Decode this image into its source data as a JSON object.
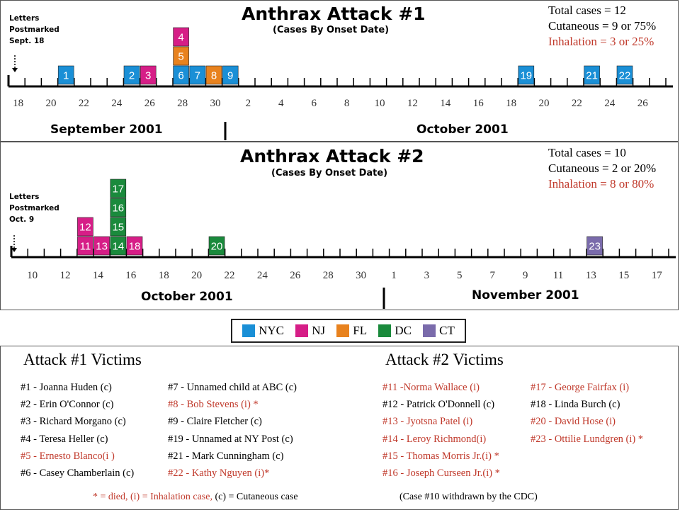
{
  "chart_data": [
    {
      "type": "bar",
      "title": "Anthrax Attack #1",
      "subtitle": "(Cases By Onset Date)",
      "summary": [
        "Total cases = 12",
        "Cutaneous = 9 or 75%",
        "Inhalation = 3 or 25%"
      ],
      "note": "Letters\nPostmarked\nSept. 18",
      "tick_labels": [
        "18",
        "20",
        "22",
        "24",
        "26",
        "28",
        "30",
        "2",
        "4",
        "6",
        "8",
        "10",
        "12",
        "14",
        "16",
        "18",
        "20",
        "22",
        "24",
        "26"
      ],
      "months": [
        "September 2001",
        "October 2001"
      ],
      "x_unit_days_from_sep18": true,
      "cases": [
        {
          "label": "1",
          "day": 3.5,
          "level": 0,
          "state": "NYC"
        },
        {
          "label": "2",
          "day": 7.5,
          "level": 0,
          "state": "NYC"
        },
        {
          "label": "3",
          "day": 8.5,
          "level": 0,
          "state": "NJ"
        },
        {
          "label": "6",
          "day": 10.5,
          "level": 0,
          "state": "NYC"
        },
        {
          "label": "5",
          "day": 10.5,
          "level": 1,
          "state": "FL"
        },
        {
          "label": "4",
          "day": 10.5,
          "level": 2,
          "state": "NJ"
        },
        {
          "label": "7",
          "day": 11.5,
          "level": 0,
          "state": "NYC"
        },
        {
          "label": "8",
          "day": 12.5,
          "level": 0,
          "state": "FL"
        },
        {
          "label": "9",
          "day": 13.5,
          "level": 0,
          "state": "NYC"
        },
        {
          "label": "19",
          "day": 31.5,
          "level": 0,
          "state": "NYC"
        },
        {
          "label": "21",
          "day": 35.5,
          "level": 0,
          "state": "NYC"
        },
        {
          "label": "22",
          "day": 37.5,
          "level": 0,
          "state": "NYC"
        }
      ]
    },
    {
      "type": "bar",
      "title": "Anthrax Attack #2",
      "subtitle": "(Cases By Onset Date)",
      "summary": [
        "Total cases = 10",
        "Cutaneous = 2 or 20%",
        "Inhalation = 8 or 80%"
      ],
      "note": "Letters\nPostmarked\nOct. 9",
      "tick_labels": [
        "10",
        "12",
        "14",
        "16",
        "18",
        "20",
        "22",
        "24",
        "26",
        "28",
        "30",
        "1",
        "3",
        "5",
        "7",
        "9",
        "11",
        "13",
        "15",
        "17"
      ],
      "months": [
        "October 2001",
        "November 2001"
      ],
      "cases": [
        {
          "label": "11",
          "day": 4.5,
          "level": 0,
          "state": "NJ"
        },
        {
          "label": "12",
          "day": 4.5,
          "level": 1,
          "state": "NJ"
        },
        {
          "label": "13",
          "day": 5.5,
          "level": 0,
          "state": "NJ"
        },
        {
          "label": "14",
          "day": 6.5,
          "level": 0,
          "state": "DC"
        },
        {
          "label": "15",
          "day": 6.5,
          "level": 1,
          "state": "DC"
        },
        {
          "label": "16",
          "day": 6.5,
          "level": 2,
          "state": "DC"
        },
        {
          "label": "17",
          "day": 6.5,
          "level": 3,
          "state": "DC"
        },
        {
          "label": "18",
          "day": 7.5,
          "level": 0,
          "state": "NJ"
        },
        {
          "label": "20",
          "day": 12.5,
          "level": 0,
          "state": "DC"
        },
        {
          "label": "23",
          "day": 35.5,
          "level": 0,
          "state": "CT"
        }
      ]
    }
  ],
  "legend": [
    {
      "label": "NYC",
      "color": "#1a8fd6"
    },
    {
      "label": "NJ",
      "color": "#d61e87"
    },
    {
      "label": "FL",
      "color": "#e8821e"
    },
    {
      "label": "DC",
      "color": "#1a8a3c"
    },
    {
      "label": "CT",
      "color": "#7a6bab"
    }
  ],
  "colors": {
    "NYC": "#1a8fd6",
    "NJ": "#d61e87",
    "FL": "#e8821e",
    "DC": "#1a8a3c",
    "CT": "#7a6bab",
    "red_text": "#c0392b"
  },
  "victims": {
    "attack1_heading": "Attack #1 Victims",
    "attack2_heading": "Attack #2 Victims",
    "a1_col1": [
      {
        "text": "#1 - Joanna Huden (c)",
        "red": false
      },
      {
        "text": "#2 - Erin O'Connor (c)",
        "red": false
      },
      {
        "text": "#3 - Richard Morgano (c)",
        "red": false
      },
      {
        "text": "#4 - Teresa Heller (c)",
        "red": false
      },
      {
        "text": "#5 - Ernesto Blanco(i )",
        "red": true
      },
      {
        "text": "#6 - Casey Chamberlain (c)",
        "red": false
      }
    ],
    "a1_col2": [
      {
        "text": "#7 - Unnamed child at ABC (c)",
        "red": false
      },
      {
        "text": "#8 - Bob Stevens (i) *",
        "red": true
      },
      {
        "text": "#9 - Claire Fletcher (c)",
        "red": false
      },
      {
        "text": "#19 - Unnamed at NY Post (c)",
        "red": false
      },
      {
        "text": "#21 - Mark Cunningham (c)",
        "red": false
      },
      {
        "text": "#22 - Kathy Nguyen (i)*",
        "red": true
      }
    ],
    "a2_col1": [
      {
        "text": "#11 -Norma Wallace (i)",
        "red": true
      },
      {
        "text": "#12 - Patrick O'Donnell (c)",
        "red": false
      },
      {
        "text": "#13 - Jyotsna Patel (i)",
        "red": true
      },
      {
        "text": "#14 - Leroy Richmond(i)",
        "red": true
      },
      {
        "text": "#15 - Thomas Morris Jr.(i) *",
        "red": true
      },
      {
        "text": "#16 - Joseph Curseen Jr.(i) *",
        "red": true
      }
    ],
    "a2_col2": [
      {
        "text": "#17 - George Fairfax (i)",
        "red": true
      },
      {
        "text": "#18 - Linda Burch (c)",
        "red": false
      },
      {
        "text": "#20 - David Hose (i)",
        "red": true
      },
      {
        "text": "#23 - Ottilie Lundgren (i) *",
        "red": true
      }
    ]
  },
  "footer": {
    "key_red": "* = died, (i) = Inhalation case,",
    "key_black": "(c) = Cutaneous case",
    "withdrawn": "(Case #10 withdrawn by the CDC)"
  }
}
